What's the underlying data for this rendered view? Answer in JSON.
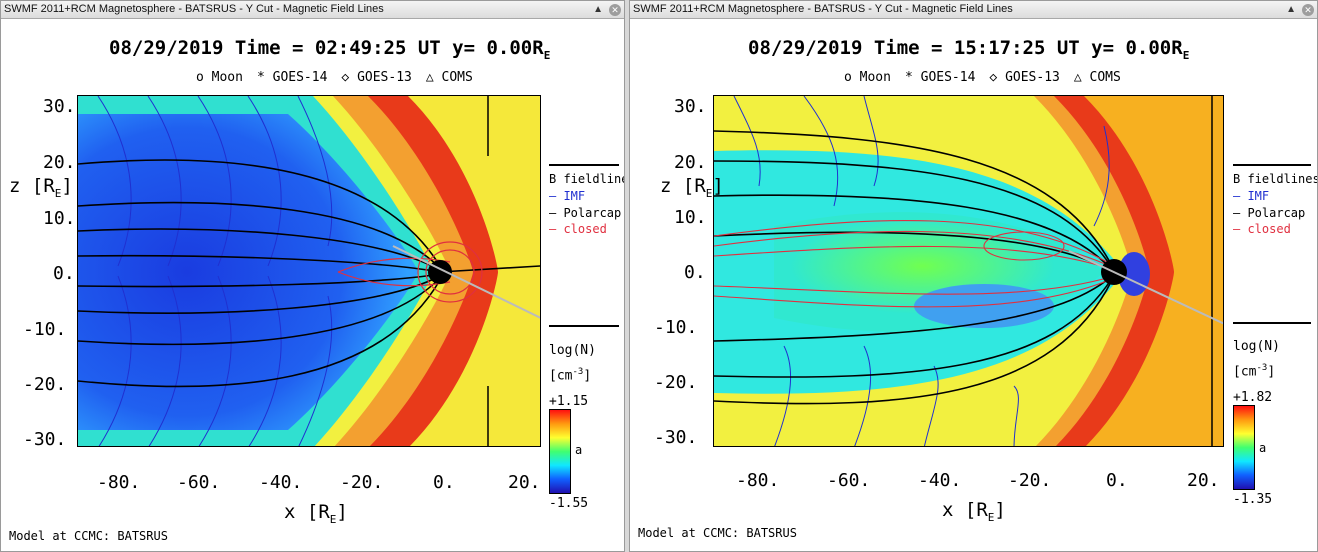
{
  "windows": [
    {
      "title": "SWMF 2011+RCM Magnetosphere - BATSRUS - Y Cut - Magnetic Field Lines",
      "plot_title": "08/29/2019 Time = 02:49:25 UT y= 0.00R",
      "title_sub": "E",
      "legend_markers": [
        "o Moon",
        "* GOES-14",
        "◇ GOES-13",
        "△ COMS"
      ],
      "y_ticks": [
        "30.",
        "20.",
        "10.",
        "0.",
        "-10.",
        "-20.",
        "-30."
      ],
      "x_ticks": [
        "-80.",
        "-60.",
        "-40.",
        "-20.",
        "0.",
        "20."
      ],
      "z_label": "z [R",
      "x_label": "x [R",
      "unit_sub": "E",
      "fieldlines_title": "B fieldlines",
      "fieldlines": {
        "imf": "IMF",
        "polarcap": "Polarcap",
        "closed": "closed"
      },
      "colorbar_label": "log(N)",
      "colorbar_unit": "[cm",
      "colorbar_unit_sup": "-3",
      "colorbar_max": "+1.15",
      "colorbar_mid": "a",
      "colorbar_min": "-1.55",
      "footer": "Model at CCMC: BATSRUS"
    },
    {
      "title": "SWMF 2011+RCM Magnetosphere - BATSRUS - Y Cut - Magnetic Field Lines",
      "plot_title": "08/29/2019 Time = 15:17:25 UT y= 0.00R",
      "title_sub": "E",
      "legend_markers": [
        "o Moon",
        "* GOES-14",
        "◇ GOES-13",
        "△ COMS"
      ],
      "y_ticks": [
        "30.",
        "20.",
        "10.",
        "0.",
        "-10.",
        "-20.",
        "-30."
      ],
      "x_ticks": [
        "-80.",
        "-60.",
        "-40.",
        "-20.",
        "0.",
        "20."
      ],
      "z_label": "z [R",
      "x_label": "x [R",
      "unit_sub": "E",
      "fieldlines_title": "B fieldlines",
      "fieldlines": {
        "imf": "IMF",
        "polarcap": "Polarcap",
        "closed": "closed"
      },
      "colorbar_label": "log(N)",
      "colorbar_unit": "[cm",
      "colorbar_unit_sup": "-3",
      "colorbar_max": "+1.82",
      "colorbar_mid": "a",
      "colorbar_min": "-1.35",
      "footer": "Model at CCMC: BATSRUS"
    }
  ],
  "colors": {
    "imf": "#2030d0",
    "polarcap": "#000000",
    "closed": "#e03040"
  }
}
